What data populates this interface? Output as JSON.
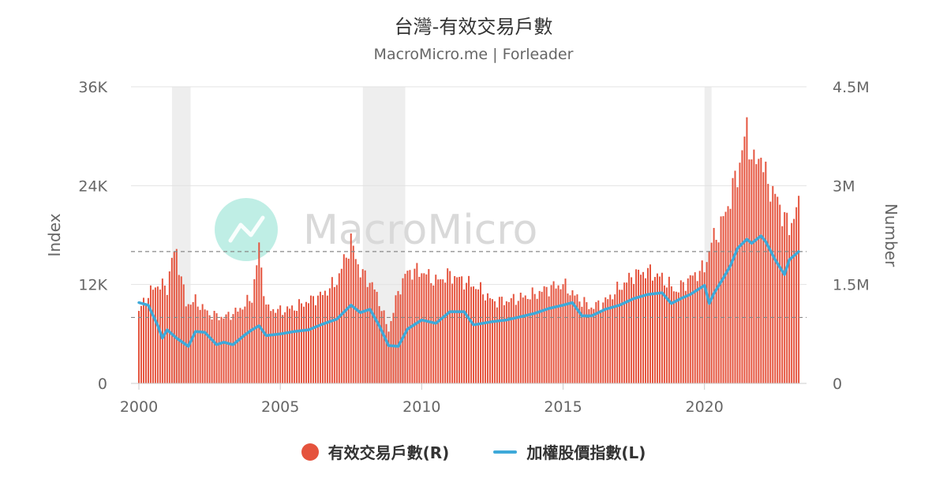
{
  "title": "台灣-有效交易戶數",
  "subtitle": "MacroMicro.me | Forleader",
  "watermark": "MacroMicro",
  "colors": {
    "bar": "#e5533d",
    "line": "#3ea9d9",
    "recession": "#eeeeee",
    "grid": "#e3e3e3",
    "axis_text": "#666666",
    "dashed": "#888888",
    "watermark_text": "#d9d9d9",
    "watermark_logo": "#a9e8dc"
  },
  "chart_data": {
    "type": "bar",
    "x_range": [
      2000,
      2023.33
    ],
    "x_ticks": [
      2000,
      2005,
      2010,
      2015,
      2020
    ],
    "x_tick_labels": [
      "2000",
      "2005",
      "2010",
      "2015",
      "2020"
    ],
    "left_axis": {
      "label": "Index",
      "range": [
        0,
        36000
      ],
      "ticks": [
        0,
        12000,
        24000,
        36000
      ],
      "tick_labels": [
        "0",
        "12K",
        "24K",
        "36K"
      ]
    },
    "right_axis": {
      "label": "Number",
      "range": [
        0,
        4500000
      ],
      "ticks": [
        0,
        1500000,
        3000000,
        4500000
      ],
      "tick_labels": [
        "0",
        "1.5M",
        "3M",
        "4.5M"
      ]
    },
    "reference_lines_left": [
      16000,
      8000
    ],
    "recession_bands": [
      [
        2001.17,
        2001.83
      ],
      [
        2007.92,
        2009.42
      ],
      [
        2020.0,
        2020.25
      ]
    ],
    "legend_position": "bottom",
    "series": [
      {
        "name": "有效交易戶數(R)",
        "type": "bar",
        "axis": "right",
        "points": [
          [
            2000.0,
            1100000
          ],
          [
            2000.33,
            1350000
          ],
          [
            2000.67,
            1500000
          ],
          [
            2001.0,
            1450000
          ],
          [
            2001.17,
            1900000
          ],
          [
            2001.33,
            2000000
          ],
          [
            2001.67,
            1200000
          ],
          [
            2002.0,
            1250000
          ],
          [
            2002.5,
            1050000
          ],
          [
            2003.0,
            1000000
          ],
          [
            2003.5,
            1100000
          ],
          [
            2004.0,
            1300000
          ],
          [
            2004.25,
            2050000
          ],
          [
            2004.5,
            1150000
          ],
          [
            2005.0,
            1100000
          ],
          [
            2005.5,
            1150000
          ],
          [
            2006.0,
            1250000
          ],
          [
            2006.5,
            1350000
          ],
          [
            2007.0,
            1550000
          ],
          [
            2007.5,
            2150000
          ],
          [
            2007.83,
            1700000
          ],
          [
            2008.25,
            1500000
          ],
          [
            2008.5,
            1250000
          ],
          [
            2008.83,
            800000
          ],
          [
            2009.17,
            1400000
          ],
          [
            2009.5,
            1700000
          ],
          [
            2010.0,
            1700000
          ],
          [
            2010.5,
            1550000
          ],
          [
            2011.0,
            1650000
          ],
          [
            2011.5,
            1550000
          ],
          [
            2012.0,
            1450000
          ],
          [
            2012.5,
            1250000
          ],
          [
            2013.0,
            1250000
          ],
          [
            2013.5,
            1300000
          ],
          [
            2014.0,
            1350000
          ],
          [
            2014.5,
            1450000
          ],
          [
            2015.0,
            1500000
          ],
          [
            2015.5,
            1300000
          ],
          [
            2016.0,
            1150000
          ],
          [
            2016.5,
            1250000
          ],
          [
            2017.0,
            1450000
          ],
          [
            2017.5,
            1650000
          ],
          [
            2018.0,
            1700000
          ],
          [
            2018.5,
            1600000
          ],
          [
            2019.0,
            1400000
          ],
          [
            2019.5,
            1600000
          ],
          [
            2020.0,
            1750000
          ],
          [
            2020.25,
            2150000
          ],
          [
            2020.5,
            2300000
          ],
          [
            2020.83,
            2700000
          ],
          [
            2021.17,
            3200000
          ],
          [
            2021.5,
            3850000
          ],
          [
            2021.75,
            3300000
          ],
          [
            2022.0,
            3500000
          ],
          [
            2022.17,
            3100000
          ],
          [
            2022.5,
            2850000
          ],
          [
            2022.75,
            2600000
          ],
          [
            2023.0,
            2350000
          ],
          [
            2023.25,
            2650000
          ]
        ]
      },
      {
        "name": "加權股價指數(L)",
        "type": "line",
        "axis": "left",
        "points": [
          [
            2000.0,
            9800
          ],
          [
            2000.33,
            9500
          ],
          [
            2000.67,
            7000
          ],
          [
            2000.83,
            5500
          ],
          [
            2001.0,
            6500
          ],
          [
            2001.33,
            5500
          ],
          [
            2001.75,
            4500
          ],
          [
            2002.0,
            6300
          ],
          [
            2002.33,
            6200
          ],
          [
            2002.75,
            4700
          ],
          [
            2003.0,
            5000
          ],
          [
            2003.33,
            4700
          ],
          [
            2003.75,
            5900
          ],
          [
            2004.0,
            6500
          ],
          [
            2004.25,
            7000
          ],
          [
            2004.5,
            5800
          ],
          [
            2005.0,
            6000
          ],
          [
            2005.5,
            6300
          ],
          [
            2006.0,
            6500
          ],
          [
            2006.5,
            7200
          ],
          [
            2007.0,
            7800
          ],
          [
            2007.5,
            9500
          ],
          [
            2007.83,
            8600
          ],
          [
            2008.17,
            9000
          ],
          [
            2008.5,
            7000
          ],
          [
            2008.83,
            4600
          ],
          [
            2009.17,
            4500
          ],
          [
            2009.5,
            6600
          ],
          [
            2010.0,
            7700
          ],
          [
            2010.5,
            7300
          ],
          [
            2011.0,
            8700
          ],
          [
            2011.5,
            8700
          ],
          [
            2011.83,
            7100
          ],
          [
            2012.0,
            7200
          ],
          [
            2012.5,
            7500
          ],
          [
            2013.0,
            7700
          ],
          [
            2013.5,
            8100
          ],
          [
            2014.0,
            8500
          ],
          [
            2014.5,
            9100
          ],
          [
            2015.0,
            9500
          ],
          [
            2015.33,
            9800
          ],
          [
            2015.67,
            8200
          ],
          [
            2016.0,
            8200
          ],
          [
            2016.5,
            9000
          ],
          [
            2017.0,
            9500
          ],
          [
            2017.5,
            10300
          ],
          [
            2018.0,
            10800
          ],
          [
            2018.5,
            11000
          ],
          [
            2018.83,
            9700
          ],
          [
            2019.17,
            10300
          ],
          [
            2019.5,
            10800
          ],
          [
            2020.0,
            11900
          ],
          [
            2020.17,
            9700
          ],
          [
            2020.33,
            10900
          ],
          [
            2020.67,
            12800
          ],
          [
            2020.92,
            14300
          ],
          [
            2021.17,
            16400
          ],
          [
            2021.5,
            17500
          ],
          [
            2021.67,
            17000
          ],
          [
            2022.0,
            17900
          ],
          [
            2022.17,
            17200
          ],
          [
            2022.5,
            15000
          ],
          [
            2022.83,
            13200
          ],
          [
            2023.0,
            15000
          ],
          [
            2023.33,
            16000
          ]
        ]
      }
    ]
  }
}
